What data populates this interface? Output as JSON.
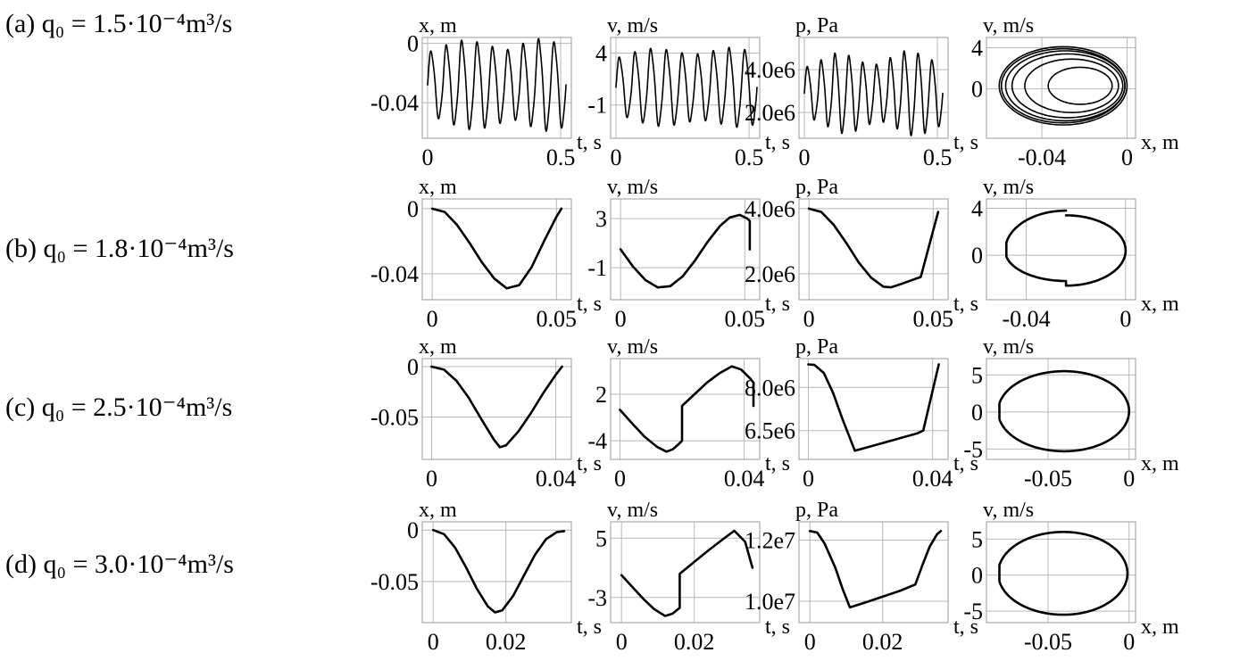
{
  "rows": [
    {
      "label": "(a) q₀ = 1.5·10⁻⁴m³/s"
    },
    {
      "label": "(b) q₀ = 1.8·10⁻⁴m³/s"
    },
    {
      "label": "(c) q₀ = 2.5·10⁻⁴m³/s"
    },
    {
      "label": "(d) q₀ = 3.0·10⁻⁴m³/s"
    }
  ],
  "chart_data": [
    {
      "row": 0,
      "col": 0,
      "type": "line",
      "ylabel": "x, m",
      "xlabel": "t, s",
      "xlim": [
        -0.02,
        0.54
      ],
      "ylim": [
        -0.064,
        0.004
      ],
      "xticks": [
        {
          "v": 0,
          "label": "0"
        },
        {
          "v": 0.5,
          "label": "0.5"
        }
      ],
      "yticks": [
        {
          "v": 0,
          "label": "0"
        },
        {
          "v": -0.04,
          "label": "-0.04"
        }
      ],
      "series": [
        {
          "gen": "osc",
          "T": [
            0,
            0.52
          ],
          "cycles": 9,
          "mean": -0.028,
          "amps": [
            0.022,
            0.026,
            0.029,
            0.028,
            0.025,
            0.023,
            0.027,
            0.03,
            0.028
          ]
        }
      ]
    },
    {
      "row": 0,
      "col": 1,
      "type": "line",
      "ylabel": "v, m/s",
      "xlabel": "t, s",
      "xlim": [
        -0.02,
        0.54
      ],
      "ylim": [
        -4.2,
        5.5
      ],
      "xticks": [
        {
          "v": 0,
          "label": "0"
        },
        {
          "v": 0.5,
          "label": "0.5"
        }
      ],
      "yticks": [
        {
          "v": 4,
          "label": "4"
        },
        {
          "v": -1,
          "label": "-1"
        }
      ],
      "series": [
        {
          "gen": "osc",
          "T": [
            0,
            0.53
          ],
          "cycles": 9,
          "mean": 0.7,
          "amps": [
            2.8,
            3.3,
            3.6,
            3.5,
            3.2,
            3.1,
            3.4,
            3.7,
            3.5
          ]
        }
      ]
    },
    {
      "row": 0,
      "col": 2,
      "type": "line",
      "ylabel": "p, Pa",
      "xlabel": "t, s",
      "xlim": [
        -0.02,
        0.54
      ],
      "ylim": [
        800000,
        5500000
      ],
      "xticks": [
        {
          "v": 0,
          "label": "0"
        },
        {
          "v": 0.5,
          "label": "0.5"
        }
      ],
      "yticks": [
        {
          "v": 4000000,
          "label": "4.0e6"
        },
        {
          "v": 2000000,
          "label": "2.0e6"
        }
      ],
      "series": [
        {
          "gen": "osc",
          "T": [
            0,
            0.52
          ],
          "cycles": 10,
          "mean": 2900000,
          "amps": [
            1200000,
            1500000,
            1800000,
            1700000,
            1400000,
            1300000,
            1600000,
            1900000,
            1800000,
            1500000
          ]
        }
      ]
    },
    {
      "row": 0,
      "col": 3,
      "type": "line",
      "ylabel": "v, m/s",
      "xlabel": "x, m",
      "xlim": [
        -0.066,
        0.004
      ],
      "ylim": [
        -4.8,
        5.0
      ],
      "xticks": [
        {
          "v": -0.04,
          "label": "-0.04"
        },
        {
          "v": 0,
          "label": "0"
        }
      ],
      "yticks": [
        {
          "v": 4,
          "label": "4"
        },
        {
          "v": 0,
          "label": "0"
        }
      ],
      "series": [
        {
          "gen": "loops",
          "cx": -0.03,
          "cy": 0.3,
          "rx": [
            0.015,
            0.022,
            0.026,
            0.028,
            0.029,
            0.03
          ],
          "ry": [
            1.8,
            2.6,
            3.1,
            3.4,
            3.6,
            3.8
          ],
          "shift": [
            0.008,
            0.004,
            0.002,
            0.001,
            0,
            0
          ]
        }
      ]
    },
    {
      "row": 1,
      "col": 0,
      "type": "line",
      "ylabel": "x, m",
      "xlabel": "t, s",
      "xlim": [
        -0.004,
        0.056
      ],
      "ylim": [
        -0.056,
        0.006
      ],
      "xticks": [
        {
          "v": 0,
          "label": "0"
        },
        {
          "v": 0.05,
          "label": "0.05"
        }
      ],
      "yticks": [
        {
          "v": 0,
          "label": "0"
        },
        {
          "v": -0.04,
          "label": "-0.04"
        }
      ],
      "series": [
        {
          "x": [
            0,
            0.005,
            0.01,
            0.015,
            0.02,
            0.025,
            0.03,
            0.035,
            0.04,
            0.045,
            0.05,
            0.052
          ],
          "y": [
            0,
            -0.002,
            -0.01,
            -0.021,
            -0.033,
            -0.043,
            -0.049,
            -0.047,
            -0.036,
            -0.02,
            -0.005,
            0
          ]
        }
      ]
    },
    {
      "row": 1,
      "col": 1,
      "type": "line",
      "ylabel": "v, m/s",
      "xlabel": "t, s",
      "xlim": [
        -0.004,
        0.056
      ],
      "ylim": [
        -3.6,
        4.6
      ],
      "xticks": [
        {
          "v": 0,
          "label": "0"
        },
        {
          "v": 0.05,
          "label": "0.05"
        }
      ],
      "yticks": [
        {
          "v": 3,
          "label": "3"
        },
        {
          "v": -1,
          "label": "-1"
        }
      ],
      "series": [
        {
          "x": [
            0,
            0.005,
            0.01,
            0.015,
            0.02,
            0.025,
            0.03,
            0.035,
            0.04,
            0.044,
            0.048,
            0.051,
            0.052,
            0.052
          ],
          "y": [
            0.5,
            -0.9,
            -2,
            -2.6,
            -2.5,
            -1.7,
            -0.4,
            1.1,
            2.4,
            3.1,
            3.3,
            3,
            2.8,
            0.5
          ]
        }
      ]
    },
    {
      "row": 1,
      "col": 2,
      "type": "line",
      "ylabel": "p, Pa",
      "xlabel": "t, s",
      "xlim": [
        -0.004,
        0.056
      ],
      "ylim": [
        1200000,
        4300000
      ],
      "xticks": [
        {
          "v": 0,
          "label": "0"
        },
        {
          "v": 0.05,
          "label": "0.05"
        }
      ],
      "yticks": [
        {
          "v": 4000000,
          "label": "4.0e6"
        },
        {
          "v": 2000000,
          "label": "2.0e6"
        }
      ],
      "series": [
        {
          "x": [
            0,
            0.005,
            0.01,
            0.015,
            0.02,
            0.025,
            0.03,
            0.033,
            0.037,
            0.045,
            0.052
          ],
          "y": [
            4000000,
            3900000,
            3500000,
            2950000,
            2350000,
            1880000,
            1600000,
            1580000,
            1680000,
            1900000,
            3900000
          ]
        }
      ]
    },
    {
      "row": 1,
      "col": 3,
      "type": "line",
      "ylabel": "v, m/s",
      "xlabel": "x, m",
      "xlim": [
        -0.056,
        0.004
      ],
      "ylim": [
        -3.8,
        4.8
      ],
      "xticks": [
        {
          "v": -0.04,
          "label": "-0.04"
        },
        {
          "v": 0,
          "label": "0"
        }
      ],
      "yticks": [
        {
          "v": 4,
          "label": "4"
        },
        {
          "v": 0,
          "label": "0"
        }
      ],
      "series": [
        {
          "gen": "phase",
          "xmin": -0.048,
          "xmax": 0,
          "vtop": 3.4,
          "vbot": -2.6,
          "vlast": 2.5
        }
      ]
    },
    {
      "row": 2,
      "col": 0,
      "type": "line",
      "ylabel": "x, m",
      "xlabel": "t, s",
      "xlim": [
        -0.003,
        0.045
      ],
      "ylim": [
        -0.092,
        0.008
      ],
      "xticks": [
        {
          "v": 0,
          "label": "0"
        },
        {
          "v": 0.04,
          "label": "0.04"
        }
      ],
      "yticks": [
        {
          "v": 0,
          "label": "0"
        },
        {
          "v": -0.05,
          "label": "-0.05"
        }
      ],
      "series": [
        {
          "x": [
            0,
            0.004,
            0.008,
            0.012,
            0.016,
            0.02,
            0.022,
            0.024,
            0.028,
            0.032,
            0.036,
            0.04,
            0.042
          ],
          "y": [
            0,
            -0.003,
            -0.014,
            -0.031,
            -0.052,
            -0.072,
            -0.08,
            -0.078,
            -0.064,
            -0.046,
            -0.026,
            -0.008,
            0
          ]
        }
      ]
    },
    {
      "row": 2,
      "col": 1,
      "type": "line",
      "ylabel": "v, m/s",
      "xlabel": "t, s",
      "xlim": [
        -0.003,
        0.045
      ],
      "ylim": [
        -6.4,
        6.6
      ],
      "xticks": [
        {
          "v": 0,
          "label": "0"
        },
        {
          "v": 0.04,
          "label": "0.04"
        }
      ],
      "yticks": [
        {
          "v": 2,
          "label": "2"
        },
        {
          "v": -4,
          "label": "-4"
        }
      ],
      "series": [
        {
          "x": [
            0,
            0.004,
            0.008,
            0.012,
            0.015,
            0.017,
            0.019,
            0.02,
            0.02,
            0.024,
            0.028,
            0.032,
            0.036,
            0.039,
            0.042,
            0.043,
            0.043
          ],
          "y": [
            0,
            -1.8,
            -3.5,
            -4.8,
            -5.4,
            -5.1,
            -4.4,
            -4,
            0.5,
            2,
            3.5,
            4.7,
            5.6,
            5.2,
            4,
            3.5,
            0.5
          ]
        }
      ]
    },
    {
      "row": 2,
      "col": 2,
      "type": "line",
      "ylabel": "p, Pa",
      "xlabel": "t, s",
      "xlim": [
        -0.003,
        0.045
      ],
      "ylim": [
        5500000,
        9000000
      ],
      "xticks": [
        {
          "v": 0,
          "label": "0"
        },
        {
          "v": 0.04,
          "label": "0.04"
        }
      ],
      "yticks": [
        {
          "v": 8000000,
          "label": "8.0e6"
        },
        {
          "v": 6500000,
          "label": "6.5e6"
        }
      ],
      "series": [
        {
          "x": [
            0,
            0.002,
            0.005,
            0.008,
            0.011,
            0.015,
            0.02,
            0.025,
            0.03,
            0.035,
            0.037,
            0.042
          ],
          "y": [
            8800000,
            8780000,
            8500000,
            7800000,
            6900000,
            5800000,
            5950000,
            6100000,
            6250000,
            6400000,
            6500000,
            8800000
          ]
        }
      ]
    },
    {
      "row": 2,
      "col": 3,
      "type": "line",
      "ylabel": "v, m/s",
      "xlabel": "x, m",
      "xlim": [
        -0.088,
        0.004
      ],
      "ylim": [
        -6.4,
        7.2
      ],
      "xticks": [
        {
          "v": -0.05,
          "label": "-0.05"
        },
        {
          "v": 0,
          "label": "0"
        }
      ],
      "yticks": [
        {
          "v": 5,
          "label": "5"
        },
        {
          "v": 0,
          "label": "0"
        },
        {
          "v": -5,
          "label": "-5"
        }
      ],
      "series": [
        {
          "gen": "phase",
          "xmin": -0.08,
          "xmax": 0,
          "vtop": 5.5,
          "vbot": -5.3,
          "vlast": 3.3,
          "jump": true
        }
      ]
    },
    {
      "row": 3,
      "col": 0,
      "type": "line",
      "ylabel": "x, m",
      "xlabel": "t, s",
      "xlim": [
        -0.003,
        0.038
      ],
      "ylim": [
        -0.09,
        0.008
      ],
      "xticks": [
        {
          "v": 0,
          "label": "0"
        },
        {
          "v": 0.02,
          "label": "0.02"
        }
      ],
      "yticks": [
        {
          "v": 0,
          "label": "0"
        },
        {
          "v": -0.05,
          "label": "-0.05"
        }
      ],
      "series": [
        {
          "x": [
            0,
            0.003,
            0.006,
            0.009,
            0.012,
            0.015,
            0.017,
            0.019,
            0.022,
            0.025,
            0.028,
            0.031,
            0.034,
            0.036
          ],
          "y": [
            0,
            -0.004,
            -0.017,
            -0.036,
            -0.057,
            -0.074,
            -0.08,
            -0.078,
            -0.064,
            -0.044,
            -0.024,
            -0.009,
            -0.002,
            -0.001
          ]
        }
      ]
    },
    {
      "row": 3,
      "col": 1,
      "type": "line",
      "ylabel": "v, m/s",
      "xlabel": "t, s",
      "xlim": [
        -0.003,
        0.038
      ],
      "ylim": [
        -6.4,
        7.2
      ],
      "xticks": [
        {
          "v": 0,
          "label": "0"
        },
        {
          "v": 0.02,
          "label": "0.02"
        }
      ],
      "yticks": [
        {
          "v": 5,
          "label": "5"
        },
        {
          "v": -3,
          "label": "-3"
        }
      ],
      "series": [
        {
          "x": [
            0,
            0.003,
            0.006,
            0.009,
            0.012,
            0.014,
            0.016,
            0.016,
            0.02,
            0.024,
            0.028,
            0.031,
            0.034,
            0.036
          ],
          "y": [
            0,
            -1.6,
            -3.2,
            -4.6,
            -5.5,
            -5.2,
            -4.4,
            0.2,
            1.8,
            3.4,
            4.9,
            6,
            4.5,
            1
          ]
        }
      ]
    },
    {
      "row": 3,
      "col": 2,
      "type": "line",
      "ylabel": "p, Pa",
      "xlabel": "t, s",
      "xlim": [
        -0.003,
        0.038
      ],
      "ylim": [
        9300000,
        12600000
      ],
      "xticks": [
        {
          "v": 0,
          "label": "0"
        },
        {
          "v": 0.02,
          "label": "0.02"
        }
      ],
      "yticks": [
        {
          "v": 12000000,
          "label": "1.2e7"
        },
        {
          "v": 10000000,
          "label": "1.0e7"
        }
      ],
      "series": [
        {
          "x": [
            0,
            0.002,
            0.004,
            0.007,
            0.009,
            0.011,
            0.015,
            0.02,
            0.025,
            0.029,
            0.031,
            0.033,
            0.035,
            0.036
          ],
          "y": [
            12300000,
            12250000,
            11900000,
            11100000,
            10400000,
            9800000,
            9950000,
            10150000,
            10350000,
            10550000,
            11200000,
            11800000,
            12200000,
            12300000
          ]
        }
      ]
    },
    {
      "row": 3,
      "col": 3,
      "type": "line",
      "ylabel": "v, m/s",
      "xlabel": "x, m",
      "xlim": [
        -0.088,
        0.004
      ],
      "ylim": [
        -6.6,
        7.4
      ],
      "xticks": [
        {
          "v": -0.05,
          "label": "-0.05"
        },
        {
          "v": 0,
          "label": "0"
        }
      ],
      "yticks": [
        {
          "v": 5,
          "label": "5"
        },
        {
          "v": 0,
          "label": "0"
        },
        {
          "v": -5,
          "label": "-5"
        }
      ],
      "series": [
        {
          "gen": "phase",
          "xmin": -0.08,
          "xmax": -0.001,
          "vtop": 6.0,
          "vbot": -5.5,
          "vlast": 0.6,
          "jump": true
        }
      ]
    }
  ]
}
